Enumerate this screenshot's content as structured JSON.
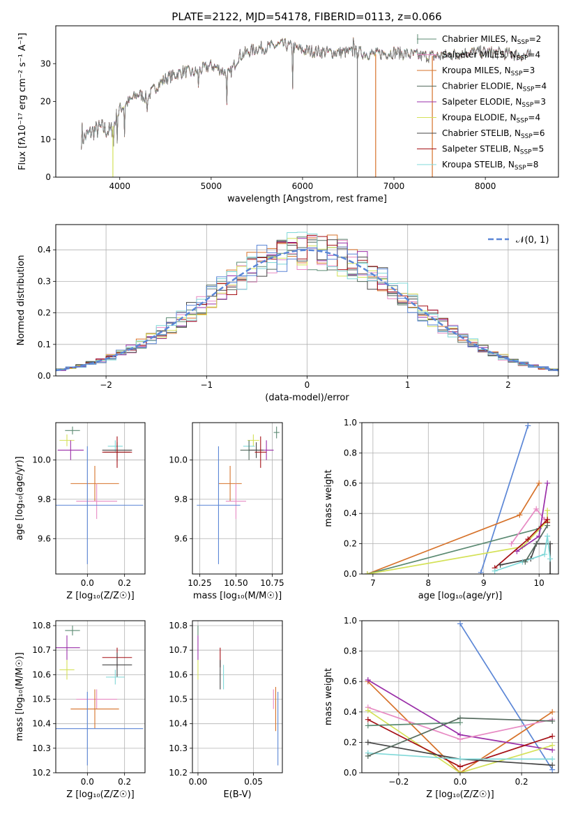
{
  "figure": {
    "title": "PLATE=2122, MJD=54178, FIBERID=0113, z=0.066"
  },
  "colors": {
    "Chabrier MILES": "#5b8a72",
    "Salpeter MILES": "#e78ac3",
    "Kroupa MILES": "#d6722a",
    "Chabrier ELODIE": "#556b5e",
    "Salpeter ELODIE": "#9a2ea8",
    "Kroupa ELODIE": "#d4e157",
    "Chabrier STELIB": "#444444",
    "Salpeter STELIB": "#a50f15",
    "Kroupa STELIB": "#7fd8d8",
    "blue": "#5b86d6"
  },
  "chart_data": [
    {
      "id": "spectrum",
      "type": "line",
      "xlabel": "wavelength [Angstrom, rest frame]",
      "ylabel": "Flux [fλ10⁻¹⁷ erg cm⁻² s⁻¹ A⁻¹]",
      "xlim": [
        3300,
        8800
      ],
      "ylim": [
        0,
        40
      ],
      "xticks": [
        4000,
        5000,
        6000,
        7000,
        8000
      ],
      "yticks": [
        0,
        10,
        20,
        30
      ],
      "grid": false,
      "legend_position": "right",
      "legend": [
        {
          "label": "Chabrier MILES, N",
          "sub": "SSP",
          "tail": "=2",
          "model": "Chabrier MILES"
        },
        {
          "label": "Salpeter MILES, N",
          "sub": "SSP",
          "tail": "=4",
          "model": "Salpeter MILES"
        },
        {
          "label": "Kroupa MILES, N",
          "sub": "SSP",
          "tail": "=3",
          "model": "Kroupa MILES"
        },
        {
          "label": "Chabrier ELODIE, N",
          "sub": "SSP",
          "tail": "=4",
          "model": "Chabrier ELODIE"
        },
        {
          "label": "Salpeter ELODIE, N",
          "sub": "SSP",
          "tail": "=3",
          "model": "Salpeter ELODIE"
        },
        {
          "label": "Kroupa ELODIE, N",
          "sub": "SSP",
          "tail": "=4",
          "model": "Kroupa ELODIE"
        },
        {
          "label": "Chabrier STELIB, N",
          "sub": "SSP",
          "tail": "=6",
          "model": "Chabrier STELIB"
        },
        {
          "label": "Salpeter STELIB, N",
          "sub": "SSP",
          "tail": "=5",
          "model": "Salpeter STELIB"
        },
        {
          "label": "Kroupa STELIB, N",
          "sub": "SSP",
          "tail": "=8",
          "model": "Kroupa STELIB"
        }
      ],
      "continuum": [
        [
          3580,
          10
        ],
        [
          3700,
          12
        ],
        [
          3800,
          13
        ],
        [
          3900,
          12
        ],
        [
          3950,
          15
        ],
        [
          4000,
          18
        ],
        [
          4100,
          20
        ],
        [
          4200,
          22
        ],
        [
          4300,
          21
        ],
        [
          4400,
          24
        ],
        [
          4500,
          26
        ],
        [
          4700,
          28
        ],
        [
          4800,
          27.5
        ],
        [
          5000,
          29.5
        ],
        [
          5100,
          28.5
        ],
        [
          5200,
          27
        ],
        [
          5300,
          32
        ],
        [
          5500,
          34
        ],
        [
          5800,
          35
        ],
        [
          6000,
          33.5
        ],
        [
          6300,
          33
        ],
        [
          6600,
          33
        ],
        [
          6800,
          32.5
        ],
        [
          7000,
          33
        ],
        [
          7300,
          32
        ],
        [
          7500,
          32
        ],
        [
          7800,
          33
        ],
        [
          8000,
          33
        ],
        [
          8300,
          32.5
        ],
        [
          8500,
          32
        ]
      ],
      "spikes": [
        [
          3590,
          2
        ],
        [
          4050,
          -8
        ],
        [
          4300,
          -4
        ],
        [
          4860,
          -5
        ],
        [
          5170,
          -9
        ],
        [
          5890,
          -10
        ],
        [
          6560,
          3
        ],
        [
          3930,
          -6
        ],
        [
          3970,
          -5
        ]
      ]
    },
    {
      "id": "residuals",
      "type": "histogram",
      "xlabel": "(data-model)/error",
      "ylabel": "Normed distribution",
      "xlim": [
        -2.5,
        2.5
      ],
      "ylim": [
        0,
        0.48
      ],
      "xticks": [
        -2,
        -1,
        0,
        1,
        2
      ],
      "yticks": [
        0.0,
        0.1,
        0.2,
        0.3,
        0.4
      ],
      "grid": true,
      "legend_position": "top-right",
      "legend": "𝒩(0, 1)",
      "bin_width": 0.1
    },
    {
      "id": "age_vs_Z",
      "type": "errorbar",
      "xlabel": "Z [log₁₀(Z/Z☉)]",
      "ylabel": "age [log₁₀(age/yr)]",
      "xlim": [
        -0.17,
        0.31
      ],
      "ylim": [
        9.42,
        10.19
      ],
      "xticks": [
        0.0,
        0.2
      ],
      "yticks": [
        9.6,
        9.8,
        10.0
      ],
      "grid": true,
      "points": [
        {
          "model": "Chabrier MILES",
          "x": -0.08,
          "y": 10.15,
          "xerr": 0.04,
          "yerr": 0.02
        },
        {
          "model": "Kroupa ELODIE",
          "x": -0.11,
          "y": 10.1,
          "xerr": 0.04,
          "yerr": 0.03
        },
        {
          "model": "Salpeter ELODIE",
          "x": -0.09,
          "y": 10.05,
          "xerr": 0.07,
          "yerr": 0.05
        },
        {
          "model": "Kroupa STELIB",
          "x": 0.15,
          "y": 10.07,
          "xerr": 0.04,
          "yerr": 0.03
        },
        {
          "model": "Chabrier STELIB",
          "x": 0.16,
          "y": 10.05,
          "xerr": 0.08,
          "yerr": 0.04
        },
        {
          "model": "Chabrier ELODIE",
          "x": 0.16,
          "y": 10.04,
          "xerr": 0.07,
          "yerr": 0.05
        },
        {
          "model": "Salpeter STELIB",
          "x": 0.16,
          "y": 10.04,
          "xerr": 0.08,
          "yerr": 0.08
        },
        {
          "model": "Kroupa MILES",
          "x": 0.04,
          "y": 9.88,
          "xerr": 0.13,
          "yerr": 0.09
        },
        {
          "model": "Salpeter MILES",
          "x": 0.05,
          "y": 9.79,
          "xerr": 0.11,
          "yerr": 0.09
        },
        {
          "model": "blue",
          "x": 0.0,
          "y": 9.77,
          "xerr": 0.3,
          "yerr": 0.3
        }
      ]
    },
    {
      "id": "age_vs_mass",
      "type": "errorbar",
      "xlabel": "mass [log₁₀(M/M☉)]",
      "ylabel": "",
      "xlim": [
        10.2,
        10.82
      ],
      "ylim": [
        9.42,
        10.19
      ],
      "xticks": [
        10.25,
        10.5,
        10.75
      ],
      "yticks": [
        9.6,
        9.8,
        10.0
      ],
      "grid": true,
      "points": [
        {
          "model": "Chabrier MILES",
          "x": 10.78,
          "y": 10.14,
          "xerr": 0.02,
          "yerr": 0.03
        },
        {
          "model": "Kroupa ELODIE",
          "x": 10.62,
          "y": 10.1,
          "xerr": 0.04,
          "yerr": 0.03
        },
        {
          "model": "Kroupa STELIB",
          "x": 10.59,
          "y": 10.07,
          "xerr": 0.04,
          "yerr": 0.03
        },
        {
          "model": "Chabrier ELODIE",
          "x": 10.59,
          "y": 10.05,
          "xerr": 0.06,
          "yerr": 0.05
        },
        {
          "model": "Salpeter ELODIE",
          "x": 10.71,
          "y": 10.05,
          "xerr": 0.05,
          "yerr": 0.05
        },
        {
          "model": "Chabrier STELIB",
          "x": 10.64,
          "y": 10.05,
          "xerr": 0.05,
          "yerr": 0.04
        },
        {
          "model": "Salpeter STELIB",
          "x": 10.67,
          "y": 10.04,
          "xerr": 0.04,
          "yerr": 0.08
        },
        {
          "model": "Kroupa MILES",
          "x": 10.46,
          "y": 9.88,
          "xerr": 0.08,
          "yerr": 0.09
        },
        {
          "model": "Salpeter MILES",
          "x": 10.5,
          "y": 9.79,
          "xerr": 0.07,
          "yerr": 0.09
        },
        {
          "model": "blue",
          "x": 10.38,
          "y": 9.77,
          "xerr": 0.15,
          "yerr": 0.3
        }
      ]
    },
    {
      "id": "massweight_vs_age",
      "type": "line",
      "xlabel": "age [log₁₀(age/yr)]",
      "ylabel": "mass weight",
      "xlim": [
        6.8,
        10.35
      ],
      "ylim": [
        0,
        1.0
      ],
      "xticks": [
        7,
        8,
        9,
        10
      ],
      "yticks": [
        0.0,
        0.2,
        0.4,
        0.6,
        0.8,
        1.0
      ],
      "grid": true,
      "series": [
        {
          "model": "blue",
          "x": [
            8.95,
            9.8
          ],
          "y": [
            0.01,
            0.98
          ]
        },
        {
          "model": "Kroupa MILES",
          "x": [
            6.9,
            9.65,
            10.0
          ],
          "y": [
            0.0,
            0.39,
            0.6
          ]
        },
        {
          "model": "Chabrier MILES",
          "x": [
            6.9,
            10.0,
            10.15
          ],
          "y": [
            0.0,
            0.3,
            0.35
          ]
        },
        {
          "model": "Kroupa ELODIE",
          "x": [
            6.9,
            9.7,
            10.15,
            10.15
          ],
          "y": [
            0.0,
            0.18,
            0.35,
            0.42
          ]
        },
        {
          "model": "Salpeter MILES",
          "x": [
            9.5,
            9.95,
            10.1
          ],
          "y": [
            0.2,
            0.43,
            0.36
          ]
        },
        {
          "model": "Salpeter ELODIE",
          "x": [
            9.6,
            10.0,
            10.15
          ],
          "y": [
            0.15,
            0.25,
            0.6
          ]
        },
        {
          "model": "Salpeter STELIB",
          "x": [
            9.2,
            9.8,
            10.15,
            10.15
          ],
          "y": [
            0.04,
            0.23,
            0.36,
            0.34
          ]
        },
        {
          "model": "Chabrier STELIB",
          "x": [
            9.3,
            9.85,
            9.95,
            10.2,
            10.2
          ],
          "y": [
            0.06,
            0.1,
            0.2,
            0.2,
            0.0
          ]
        },
        {
          "model": "Kroupa STELIB",
          "x": [
            9.2,
            9.7,
            10.1,
            10.15,
            10.2
          ],
          "y": [
            0.02,
            0.08,
            0.13,
            0.25,
            0.1
          ]
        },
        {
          "model": "Chabrier ELODIE",
          "x": [
            9.75,
            10.15
          ],
          "y": [
            0.08,
            0.32
          ]
        }
      ]
    },
    {
      "id": "mass_vs_Z",
      "type": "errorbar",
      "xlabel": "Z [log₁₀(Z/Z☉)]",
      "ylabel": "mass [log₁₀(M/M☉)]",
      "xlim": [
        -0.17,
        0.31
      ],
      "ylim": [
        10.2,
        10.82
      ],
      "xticks": [
        0.0,
        0.2
      ],
      "yticks": [
        10.2,
        10.3,
        10.4,
        10.5,
        10.6,
        10.7,
        10.8
      ],
      "grid": true,
      "points": [
        {
          "model": "Chabrier MILES",
          "x": -0.08,
          "y": 10.78,
          "xerr": 0.04,
          "yerr": 0.02
        },
        {
          "model": "Salpeter ELODIE",
          "x": -0.11,
          "y": 10.71,
          "xerr": 0.07,
          "yerr": 0.05
        },
        {
          "model": "Salpeter STELIB",
          "x": 0.16,
          "y": 10.67,
          "xerr": 0.08,
          "yerr": 0.04
        },
        {
          "model": "Chabrier STELIB",
          "x": 0.16,
          "y": 10.64,
          "xerr": 0.08,
          "yerr": 0.05
        },
        {
          "model": "Kroupa ELODIE",
          "x": -0.11,
          "y": 10.62,
          "xerr": 0.04,
          "yerr": 0.04
        },
        {
          "model": "Kroupa STELIB",
          "x": 0.15,
          "y": 10.59,
          "xerr": 0.05,
          "yerr": 0.03
        },
        {
          "model": "Salpeter MILES",
          "x": 0.05,
          "y": 10.5,
          "xerr": 0.11,
          "yerr": 0.04
        },
        {
          "model": "Kroupa MILES",
          "x": 0.04,
          "y": 10.46,
          "xerr": 0.13,
          "yerr": 0.08
        },
        {
          "model": "blue",
          "x": 0.0,
          "y": 10.38,
          "xerr": 0.3,
          "yerr": 0.15
        }
      ]
    },
    {
      "id": "mass_vs_ebv",
      "type": "errorbar",
      "xlabel": "E(B-V)",
      "ylabel": "",
      "xlim": [
        -0.005,
        0.076
      ],
      "ylim": [
        10.2,
        10.82
      ],
      "xticks": [
        0.0,
        0.05
      ],
      "yticks": [
        10.2,
        10.3,
        10.4,
        10.5,
        10.6,
        10.7,
        10.8
      ],
      "grid": true,
      "points": [
        {
          "model": "Chabrier MILES",
          "x": 0.0,
          "y": 10.78,
          "xerr": 0,
          "yerr": 0.02
        },
        {
          "model": "Salpeter ELODIE",
          "x": 0.0,
          "y": 10.71,
          "xerr": 0,
          "yerr": 0.05
        },
        {
          "model": "Kroupa ELODIE",
          "x": 0.0,
          "y": 10.62,
          "xerr": 0,
          "yerr": 0.04
        },
        {
          "model": "Salpeter STELIB",
          "x": 0.02,
          "y": 10.67,
          "xerr": 0,
          "yerr": 0.04
        },
        {
          "model": "Chabrier STELIB",
          "x": 0.02,
          "y": 10.6,
          "xerr": 0,
          "yerr": 0.06
        },
        {
          "model": "Kroupa STELIB",
          "x": 0.023,
          "y": 10.59,
          "xerr": 0,
          "yerr": 0.05
        },
        {
          "model": "Salpeter MILES",
          "x": 0.068,
          "y": 10.5,
          "xerr": 0,
          "yerr": 0.04
        },
        {
          "model": "Kroupa MILES",
          "x": 0.07,
          "y": 10.46,
          "xerr": 0,
          "yerr": 0.09
        },
        {
          "model": "blue",
          "x": 0.072,
          "y": 10.38,
          "xerr": 0,
          "yerr": 0.15
        }
      ]
    },
    {
      "id": "massweight_vs_Z",
      "type": "line",
      "xlabel": "Z [log₁₀(Z/Z☉)]",
      "ylabel": "mass weight",
      "xlim": [
        -0.32,
        0.32
      ],
      "ylim": [
        0,
        1.0
      ],
      "xticks": [
        -0.2,
        0.0,
        0.2
      ],
      "yticks": [
        0.0,
        0.2,
        0.4,
        0.6,
        0.8,
        1.0
      ],
      "grid": true,
      "series": [
        {
          "model": "blue",
          "x": [
            0.0,
            0.3
          ],
          "y": [
            0.98,
            0.02
          ]
        },
        {
          "model": "Kroupa MILES",
          "x": [
            -0.3,
            0.0,
            0.3
          ],
          "y": [
            0.6,
            0.0,
            0.4
          ]
        },
        {
          "model": "Salpeter ELODIE",
          "x": [
            -0.3,
            0.0,
            0.3
          ],
          "y": [
            0.61,
            0.25,
            0.15
          ]
        },
        {
          "model": "Salpeter MILES",
          "x": [
            -0.3,
            0.0,
            0.3
          ],
          "y": [
            0.43,
            0.22,
            0.35
          ]
        },
        {
          "model": "Kroupa ELODIE",
          "x": [
            -0.3,
            0.0,
            0.3
          ],
          "y": [
            0.41,
            0.0,
            0.18
          ]
        },
        {
          "model": "Salpeter STELIB",
          "x": [
            -0.3,
            0.0,
            0.3
          ],
          "y": [
            0.35,
            0.04,
            0.24
          ]
        },
        {
          "model": "Chabrier MILES",
          "x": [
            -0.3,
            0.0
          ],
          "y": [
            0.31,
            0.33
          ]
        },
        {
          "model": "Chabrier STELIB",
          "x": [
            -0.3,
            0.0,
            0.3
          ],
          "y": [
            0.2,
            0.09,
            0.05
          ]
        },
        {
          "model": "Kroupa STELIB",
          "x": [
            -0.3,
            0.0,
            0.3
          ],
          "y": [
            0.13,
            0.09,
            0.09
          ]
        },
        {
          "model": "Chabrier ELODIE",
          "x": [
            -0.3,
            0.0,
            0.3
          ],
          "y": [
            0.11,
            0.36,
            0.34
          ]
        }
      ]
    }
  ]
}
